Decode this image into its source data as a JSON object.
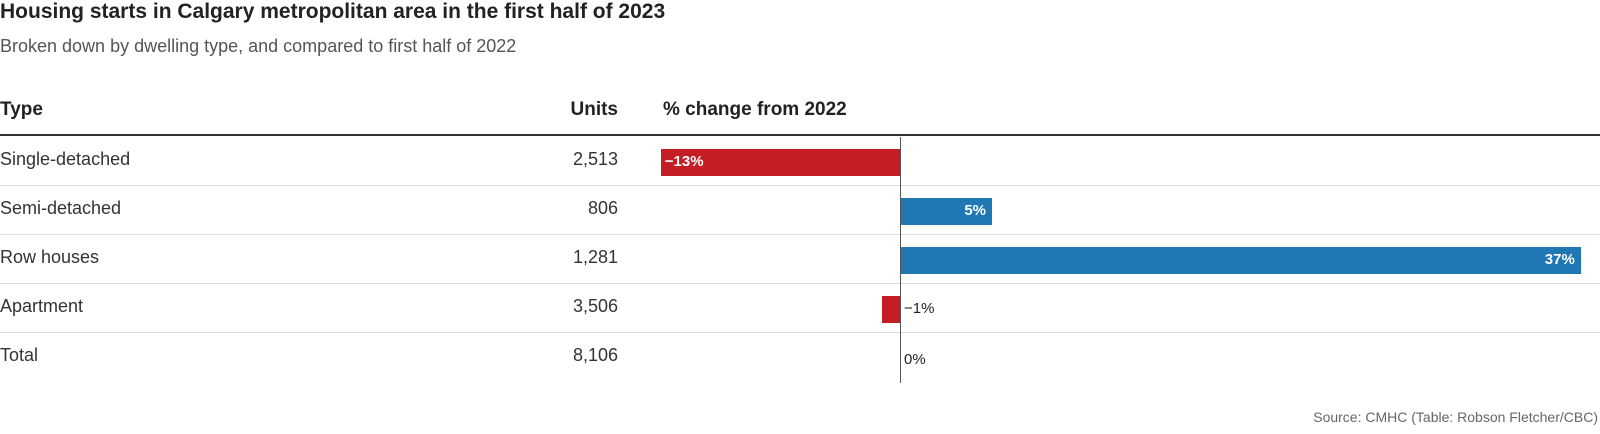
{
  "title": "Housing starts in Calgary metropolitan area in the first half of 2023",
  "subtitle": "Broken down by dwelling type, and compared to first half of 2022",
  "columns": {
    "type": "Type",
    "units": "Units",
    "change": "% change from 2022"
  },
  "source": "Source: CMHC (Table: Robson Fletcher/CBC)",
  "colors": {
    "negative": "#c41e24",
    "positive": "#1f77b4"
  },
  "chart_data": {
    "type": "bar",
    "categories": [
      "Single-detached",
      "Semi-detached",
      "Row houses",
      "Apartment",
      "Total"
    ],
    "units": [
      "2,513",
      "806",
      "1,281",
      "3,506",
      "8,106"
    ],
    "values": [
      -13,
      5,
      37,
      -1,
      0
    ],
    "value_labels": [
      "−13%",
      "5%",
      "37%",
      "−1%",
      "0%"
    ]
  }
}
